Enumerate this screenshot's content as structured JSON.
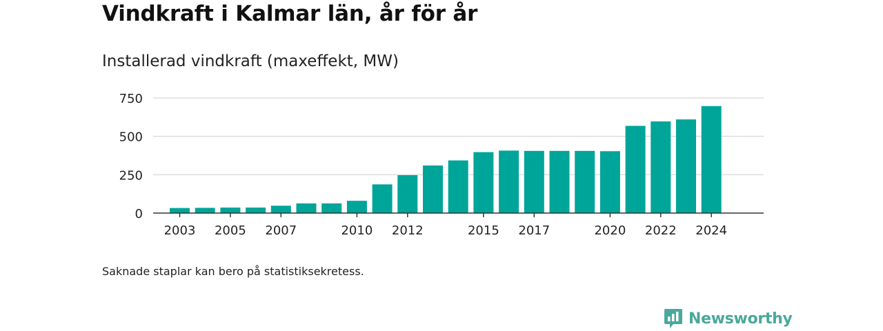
{
  "title": "Vindkraft i Kalmar län, år för år",
  "subtitle": "Installerad vindkraft (maxeffekt, MW)",
  "footnote": "Saknade staplar kan bero på statistiksekretess.",
  "brand": {
    "name": "Newsworthy",
    "icon": "newsworthy-logo-icon",
    "color": "#4aa89c"
  },
  "colors": {
    "bar": "#00a599",
    "grid": "#dddddd",
    "axis": "#333333",
    "text": "#222222"
  },
  "chart_data": {
    "type": "bar",
    "title": "Vindkraft i Kalmar län, år för år",
    "ylabel": "Installerad vindkraft (maxeffekt, MW)",
    "xlabel": "",
    "categories": [
      "2003",
      "2004",
      "2005",
      "2006",
      "2007",
      "2008",
      "2009",
      "2010",
      "2011",
      "2012",
      "2013",
      "2014",
      "2015",
      "2016",
      "2017",
      "2018",
      "2019",
      "2020",
      "2021",
      "2022",
      "2023",
      "2024"
    ],
    "values": [
      33,
      34,
      36,
      36,
      48,
      63,
      63,
      80,
      187,
      247,
      310,
      343,
      397,
      407,
      405,
      405,
      405,
      403,
      568,
      597,
      610,
      697
    ],
    "x_tick_labels": [
      "2003",
      "2005",
      "2007",
      "2010",
      "2012",
      "2015",
      "2017",
      "2020",
      "2022",
      "2024"
    ],
    "y_ticks": [
      0,
      250,
      500,
      750
    ],
    "y_tick_labels": [
      "0",
      "250",
      "500",
      "750"
    ],
    "ylim": [
      0,
      750
    ],
    "grid": true
  }
}
